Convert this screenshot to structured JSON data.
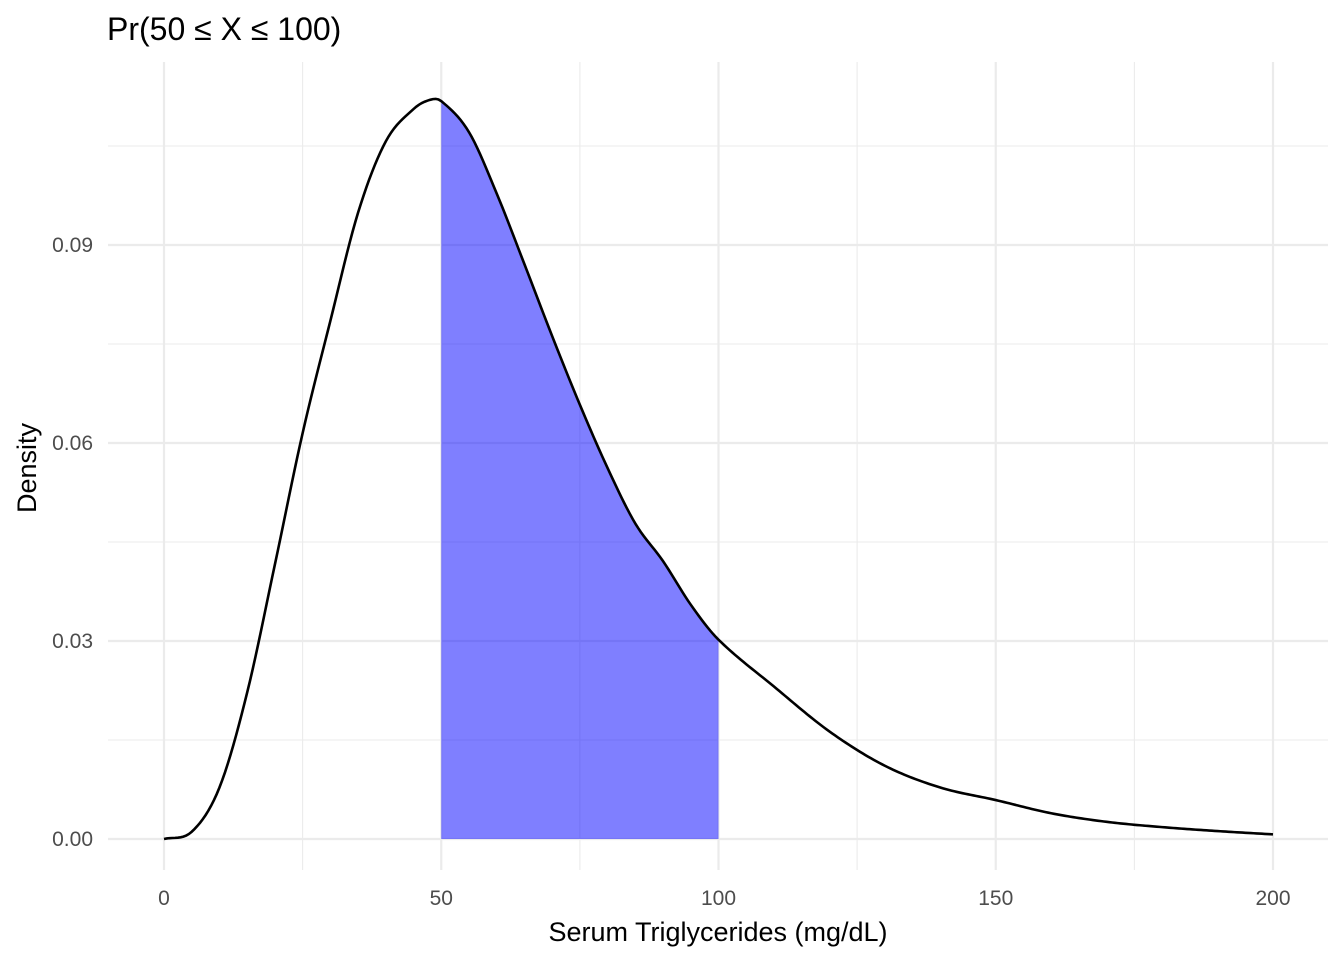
{
  "chart_data": {
    "type": "area",
    "title": "Pr(50 ≤ X ≤ 100)",
    "xlabel": "Serum Triglycerides (mg/dL)",
    "ylabel": "Density",
    "xlim": [
      0,
      200
    ],
    "ylim": [
      0,
      0.11
    ],
    "x_ticks": [
      0,
      50,
      100,
      150,
      200
    ],
    "x_tick_labels": [
      "0",
      "50",
      "100",
      "150",
      "200"
    ],
    "y_ticks": [
      0,
      0.03,
      0.06,
      0.09
    ],
    "y_tick_labels": [
      "0.00",
      "0.03",
      "0.06",
      "0.09"
    ],
    "grid": true,
    "shaded_region": {
      "from": 50,
      "to": 100,
      "color": "#0000ff",
      "opacity": 0.5
    },
    "curve_color": "#000000",
    "series": [
      {
        "x": [
          0,
          5,
          10,
          15,
          20,
          25,
          30,
          35,
          40,
          45,
          48,
          50,
          55,
          60,
          65,
          70,
          75,
          80,
          85,
          90,
          95,
          100,
          110,
          120,
          130,
          140,
          150,
          160,
          170,
          180,
          190,
          200
        ],
        "values": [
          0.0,
          0.0011,
          0.0078,
          0.0222,
          0.0416,
          0.0615,
          0.0785,
          0.0949,
          0.1057,
          0.1106,
          0.112,
          0.1118,
          0.1071,
          0.0978,
          0.0871,
          0.0762,
          0.0658,
          0.0562,
          0.0478,
          0.0421,
          0.0355,
          0.0302,
          0.0231,
          0.0163,
          0.0111,
          0.0078,
          0.0059,
          0.0039,
          0.0026,
          0.0018,
          0.0012,
          0.0007
        ]
      }
    ]
  }
}
